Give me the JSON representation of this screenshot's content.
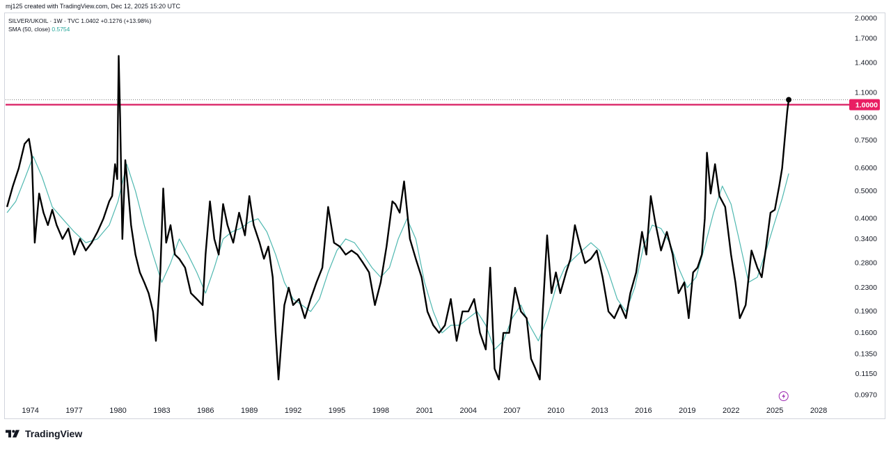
{
  "credit": "mj125 created with TradingView.com, Dec 12, 2025 15:20 UTC",
  "legend": {
    "symbol_line": "SILVER/UKOIL · 1W · TVC  1.0402  +0.1276 (+13.98%)",
    "sma_label": "SMA (50, close)",
    "sma_value": "0.5754"
  },
  "branding": {
    "logo_text": "TradingView"
  },
  "colors": {
    "price_line": "#000000",
    "sma_line": "#4fb8b0",
    "level_line": "#d81b60",
    "level_badge": "#e91e63",
    "grid_text": "#131722"
  },
  "chart_data": {
    "type": "line",
    "title": "SILVER/UKOIL · 1W · TVC",
    "scale": "log",
    "ylim": [
      0.092,
      2.05
    ],
    "xlim": [
      1972.3,
      2030.0
    ],
    "x_ticks": [
      "1974",
      "1977",
      "1980",
      "1983",
      "1986",
      "1989",
      "1992",
      "1995",
      "1998",
      "2001",
      "2004",
      "2007",
      "2010",
      "2013",
      "2016",
      "2019",
      "2022",
      "2025",
      "2028"
    ],
    "y_ticks": [
      "2.0000",
      "1.7000",
      "1.4000",
      "1.1000",
      "0.9000",
      "0.7500",
      "0.6000",
      "0.5000",
      "0.4000",
      "0.3400",
      "0.2800",
      "0.2300",
      "0.1900",
      "0.1600",
      "0.1350",
      "0.1150",
      "0.0970"
    ],
    "horizontal_level": {
      "value": 1.0,
      "label": "1.0000"
    },
    "last_price": 1.0402,
    "series": [
      {
        "name": "SILVER/UKOIL",
        "x": [
          1972.4,
          1972.8,
          1973.2,
          1973.6,
          1973.9,
          1974.1,
          1974.3,
          1974.6,
          1974.9,
          1975.2,
          1975.5,
          1975.8,
          1976.2,
          1976.6,
          1977.0,
          1977.4,
          1977.8,
          1978.2,
          1978.6,
          1979.0,
          1979.4,
          1979.6,
          1979.8,
          1979.95,
          1980.05,
          1980.15,
          1980.3,
          1980.5,
          1980.7,
          1980.9,
          1981.2,
          1981.5,
          1981.8,
          1982.1,
          1982.4,
          1982.6,
          1982.9,
          1983.1,
          1983.3,
          1983.6,
          1983.9,
          1984.2,
          1984.6,
          1985.0,
          1985.4,
          1985.8,
          1986.0,
          1986.3,
          1986.6,
          1986.9,
          1987.2,
          1987.5,
          1987.9,
          1988.3,
          1988.7,
          1989.0,
          1989.3,
          1989.7,
          1990.0,
          1990.3,
          1990.6,
          1990.8,
          1991.0,
          1991.2,
          1991.4,
          1991.7,
          1992.0,
          1992.4,
          1992.8,
          1993.2,
          1993.6,
          1994.0,
          1994.4,
          1994.8,
          1995.2,
          1995.6,
          1996.0,
          1996.4,
          1996.8,
          1997.2,
          1997.6,
          1998.0,
          1998.4,
          1998.8,
          1999.0,
          1999.3,
          1999.6,
          2000.0,
          2000.4,
          2000.8,
          2001.2,
          2001.6,
          2002.0,
          2002.4,
          2002.8,
          2003.2,
          2003.6,
          2004.0,
          2004.4,
          2004.8,
          2005.2,
          2005.5,
          2005.8,
          2006.1,
          2006.4,
          2006.8,
          2007.2,
          2007.6,
          2008.0,
          2008.3,
          2008.6,
          2008.9,
          2009.1,
          2009.4,
          2009.7,
          2010.0,
          2010.3,
          2010.7,
          2011.0,
          2011.3,
          2011.6,
          2012.0,
          2012.4,
          2012.8,
          2013.2,
          2013.6,
          2014.0,
          2014.4,
          2014.8,
          2015.1,
          2015.5,
          2015.9,
          2016.2,
          2016.5,
          2016.8,
          2017.2,
          2017.6,
          2018.0,
          2018.4,
          2018.8,
          2019.1,
          2019.4,
          2019.7,
          2020.0,
          2020.2,
          2020.35,
          2020.6,
          2020.9,
          2021.2,
          2021.6,
          2022.0,
          2022.3,
          2022.6,
          2023.0,
          2023.4,
          2023.8,
          2024.1,
          2024.4,
          2024.7,
          2025.0,
          2025.3,
          2025.5,
          2025.7,
          2025.85,
          2025.95
        ],
        "values": [
          0.44,
          0.52,
          0.6,
          0.73,
          0.76,
          0.66,
          0.33,
          0.49,
          0.42,
          0.38,
          0.43,
          0.38,
          0.34,
          0.37,
          0.3,
          0.34,
          0.31,
          0.33,
          0.36,
          0.4,
          0.46,
          0.48,
          0.62,
          0.55,
          1.48,
          0.9,
          0.34,
          0.64,
          0.5,
          0.38,
          0.3,
          0.26,
          0.24,
          0.22,
          0.19,
          0.15,
          0.26,
          0.51,
          0.33,
          0.38,
          0.3,
          0.29,
          0.27,
          0.22,
          0.21,
          0.2,
          0.3,
          0.46,
          0.34,
          0.3,
          0.45,
          0.38,
          0.33,
          0.42,
          0.35,
          0.48,
          0.38,
          0.33,
          0.29,
          0.32,
          0.25,
          0.16,
          0.11,
          0.15,
          0.2,
          0.23,
          0.2,
          0.21,
          0.18,
          0.21,
          0.24,
          0.27,
          0.44,
          0.33,
          0.32,
          0.3,
          0.31,
          0.3,
          0.28,
          0.26,
          0.2,
          0.24,
          0.32,
          0.46,
          0.45,
          0.42,
          0.54,
          0.34,
          0.29,
          0.25,
          0.19,
          0.17,
          0.16,
          0.17,
          0.21,
          0.15,
          0.19,
          0.19,
          0.21,
          0.16,
          0.14,
          0.27,
          0.12,
          0.11,
          0.16,
          0.16,
          0.23,
          0.19,
          0.18,
          0.13,
          0.12,
          0.11,
          0.19,
          0.35,
          0.22,
          0.26,
          0.22,
          0.26,
          0.29,
          0.38,
          0.33,
          0.28,
          0.29,
          0.31,
          0.25,
          0.19,
          0.18,
          0.2,
          0.18,
          0.22,
          0.26,
          0.36,
          0.3,
          0.48,
          0.39,
          0.31,
          0.36,
          0.3,
          0.22,
          0.24,
          0.18,
          0.26,
          0.27,
          0.3,
          0.4,
          0.68,
          0.49,
          0.62,
          0.48,
          0.44,
          0.3,
          0.24,
          0.18,
          0.2,
          0.31,
          0.27,
          0.25,
          0.32,
          0.42,
          0.43,
          0.52,
          0.6,
          0.78,
          0.95,
          1.0402
        ]
      },
      {
        "name": "SMA (50, close)",
        "x": [
          1972.4,
          1973.0,
          1973.6,
          1974.2,
          1974.8,
          1975.5,
          1976.2,
          1977.0,
          1977.8,
          1978.6,
          1979.4,
          1980.0,
          1980.6,
          1981.2,
          1981.8,
          1982.4,
          1983.0,
          1983.6,
          1984.2,
          1984.8,
          1985.4,
          1986.0,
          1986.6,
          1987.2,
          1987.8,
          1988.4,
          1989.0,
          1989.6,
          1990.2,
          1990.8,
          1991.4,
          1992.0,
          1992.6,
          1993.2,
          1993.8,
          1994.4,
          1995.0,
          1995.6,
          1996.2,
          1996.8,
          1997.4,
          1998.0,
          1998.6,
          1999.2,
          1999.8,
          2000.4,
          2001.0,
          2001.6,
          2002.2,
          2002.8,
          2003.4,
          2004.0,
          2004.6,
          2005.2,
          2005.8,
          2006.4,
          2007.0,
          2007.6,
          2008.2,
          2008.8,
          2009.4,
          2010.0,
          2010.6,
          2011.2,
          2011.8,
          2012.4,
          2013.0,
          2013.6,
          2014.2,
          2014.8,
          2015.4,
          2016.0,
          2016.6,
          2017.2,
          2017.8,
          2018.4,
          2019.0,
          2019.6,
          2020.2,
          2020.8,
          2021.4,
          2022.0,
          2022.6,
          2023.2,
          2023.8,
          2024.4,
          2025.0,
          2025.5,
          2025.95
        ],
        "values": [
          0.42,
          0.46,
          0.55,
          0.66,
          0.56,
          0.44,
          0.4,
          0.36,
          0.33,
          0.34,
          0.38,
          0.46,
          0.62,
          0.5,
          0.38,
          0.3,
          0.24,
          0.28,
          0.34,
          0.3,
          0.26,
          0.22,
          0.27,
          0.34,
          0.36,
          0.37,
          0.39,
          0.4,
          0.36,
          0.3,
          0.24,
          0.21,
          0.2,
          0.19,
          0.21,
          0.26,
          0.31,
          0.34,
          0.33,
          0.3,
          0.27,
          0.25,
          0.27,
          0.34,
          0.4,
          0.34,
          0.24,
          0.19,
          0.16,
          0.17,
          0.17,
          0.18,
          0.19,
          0.17,
          0.14,
          0.15,
          0.18,
          0.2,
          0.17,
          0.15,
          0.18,
          0.23,
          0.27,
          0.29,
          0.31,
          0.33,
          0.31,
          0.26,
          0.21,
          0.19,
          0.23,
          0.32,
          0.38,
          0.37,
          0.33,
          0.27,
          0.23,
          0.25,
          0.32,
          0.42,
          0.52,
          0.45,
          0.33,
          0.24,
          0.25,
          0.31,
          0.39,
          0.47,
          0.5754
        ]
      }
    ]
  }
}
